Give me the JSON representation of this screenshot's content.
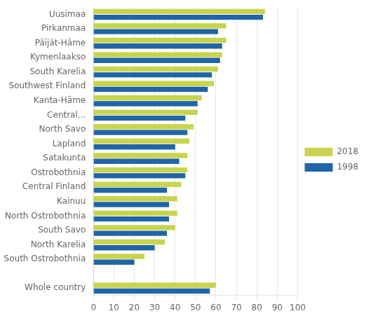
{
  "chart_data": {
    "type": "bar",
    "orientation": "horizontal",
    "categories": [
      "Uusimaa",
      "Pirkanmaa",
      "Päijät-Häme",
      "Kymenlaakso",
      "South Karelia",
      "Southwest Finland",
      "Kanta-Häme",
      "Central...",
      "North Savo",
      "Lapland",
      "Satakunta",
      "Ostrobothnia",
      "Central Finland",
      "Kainuu",
      "North Ostrobothnia",
      "South Savo",
      "North Karelia",
      "South Ostrobothnia",
      null,
      "Whole country"
    ],
    "series": [
      {
        "name": "2018",
        "color": "#c8d44e",
        "values": [
          84,
          65,
          65,
          63,
          61,
          59,
          53,
          51,
          49,
          47,
          46,
          46,
          43,
          41,
          41,
          40,
          35,
          25,
          null,
          60
        ]
      },
      {
        "name": "1998",
        "color": "#2065a8",
        "values": [
          83,
          61,
          63,
          62,
          58,
          56,
          51,
          45,
          46,
          40,
          42,
          45,
          36,
          37,
          37,
          36,
          30,
          20,
          null,
          57
        ]
      }
    ],
    "xlim": [
      0,
      100
    ],
    "xticks": [
      0,
      10,
      20,
      30,
      40,
      50,
      60,
      70,
      80,
      90,
      100
    ],
    "grid": true,
    "legend": "right"
  }
}
